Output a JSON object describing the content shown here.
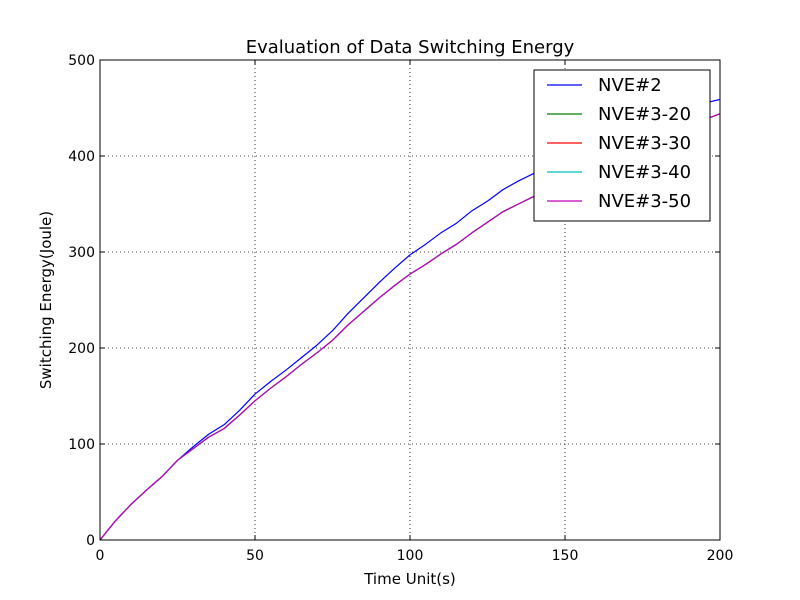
{
  "chart_data": {
    "type": "line",
    "title": "Evaluation of Data Switching Energy",
    "xlabel": "Time Unit(s)",
    "ylabel": "Switching Energy(Joule)",
    "xlim": [
      0,
      200
    ],
    "ylim": [
      0,
      500
    ],
    "xticks": [
      0,
      50,
      100,
      150,
      200
    ],
    "yticks": [
      0,
      100,
      200,
      300,
      400,
      500
    ],
    "grid": true,
    "legend_position": "top-right",
    "x": [
      0,
      5,
      10,
      15,
      20,
      25,
      30,
      35,
      40,
      45,
      50,
      55,
      60,
      65,
      70,
      75,
      80,
      85,
      90,
      95,
      100,
      105,
      110,
      115,
      120,
      125,
      130,
      135,
      140,
      145,
      150,
      155,
      160,
      165,
      170,
      175,
      180,
      185,
      190,
      195,
      200
    ],
    "series": [
      {
        "name": "NVE#2",
        "color": "#0000ff",
        "values": [
          0,
          20,
          37,
          52,
          66,
          83,
          97,
          110,
          120,
          135,
          152,
          165,
          177,
          190,
          203,
          218,
          236,
          252,
          268,
          283,
          297,
          308,
          320,
          330,
          343,
          353,
          365,
          374,
          382,
          392,
          400,
          408,
          416,
          423,
          430,
          436,
          442,
          447,
          451,
          455,
          459
        ]
      },
      {
        "name": "NVE#3-20",
        "color": "#008000",
        "values": [
          0,
          20,
          37,
          52,
          66,
          83,
          95,
          107,
          116,
          130,
          145,
          158,
          170,
          183,
          195,
          208,
          224,
          238,
          252,
          265,
          277,
          287,
          298,
          308,
          320,
          331,
          342,
          350,
          358,
          367,
          375,
          383,
          391,
          398,
          405,
          412,
          419,
          426,
          432,
          438,
          444
        ]
      },
      {
        "name": "NVE#3-30",
        "color": "#ff0000",
        "values": [
          0,
          20,
          37,
          52,
          66,
          83,
          95,
          107,
          116,
          130,
          145,
          158,
          170,
          183,
          195,
          208,
          224,
          238,
          252,
          265,
          277,
          287,
          298,
          308,
          320,
          331,
          342,
          350,
          358,
          367,
          375,
          383,
          391,
          398,
          405,
          412,
          419,
          426,
          432,
          438,
          444
        ]
      },
      {
        "name": "NVE#3-40",
        "color": "#00bfbf",
        "values": [
          0,
          20,
          37,
          52,
          66,
          83,
          95,
          107,
          116,
          130,
          145,
          158,
          170,
          183,
          195,
          208,
          224,
          238,
          252,
          265,
          277,
          287,
          298,
          308,
          320,
          331,
          342,
          350,
          358,
          367,
          375,
          383,
          391,
          398,
          405,
          412,
          419,
          426,
          432,
          438,
          444
        ]
      },
      {
        "name": "NVE#3-50",
        "color": "#bf00bf",
        "values": [
          0,
          20,
          37,
          52,
          66,
          83,
          95,
          107,
          116,
          130,
          145,
          158,
          170,
          183,
          195,
          208,
          224,
          238,
          252,
          265,
          277,
          287,
          298,
          308,
          320,
          331,
          342,
          350,
          358,
          367,
          375,
          383,
          391,
          398,
          405,
          412,
          419,
          426,
          432,
          438,
          444
        ]
      }
    ]
  }
}
